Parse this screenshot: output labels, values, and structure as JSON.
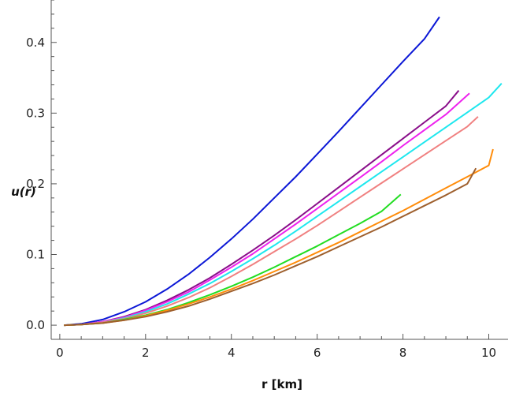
{
  "chart_data": {
    "type": "line",
    "title": "",
    "xlabel": "r [km]",
    "ylabel": "u(r)",
    "xlim": [
      -0.2,
      10.45
    ],
    "ylim": [
      -0.02,
      0.46
    ],
    "xticks": [
      0,
      2,
      4,
      6,
      8,
      10
    ],
    "yticks": [
      0.0,
      0.1,
      0.2,
      0.3,
      0.4
    ],
    "ytick_labels": [
      "0.0",
      "0.1",
      "0.2",
      "0.3",
      "0.4"
    ],
    "grid": false,
    "legend": "none",
    "series": [
      {
        "color": "#0b17d6",
        "x": [
          0.1,
          0.5,
          1,
          1.5,
          2,
          2.5,
          3,
          3.5,
          4,
          4.5,
          5,
          5.5,
          6,
          6.5,
          7,
          7.5,
          8,
          8.5,
          8.85
        ],
        "y": [
          0.0,
          0.002,
          0.008,
          0.019,
          0.033,
          0.051,
          0.072,
          0.096,
          0.122,
          0.15,
          0.18,
          0.21,
          0.242,
          0.274,
          0.307,
          0.34,
          0.373,
          0.405,
          0.436
        ]
      },
      {
        "color": "#8a0e8a",
        "x": [
          0.1,
          0.5,
          1,
          1.5,
          2,
          2.5,
          3,
          3.5,
          4,
          4.5,
          5,
          5.5,
          6,
          6.5,
          7,
          7.5,
          8,
          8.5,
          9,
          9.3
        ],
        "y": [
          0.0,
          0.001,
          0.005,
          0.012,
          0.022,
          0.035,
          0.05,
          0.067,
          0.086,
          0.106,
          0.127,
          0.149,
          0.172,
          0.195,
          0.218,
          0.241,
          0.264,
          0.287,
          0.31,
          0.332
        ]
      },
      {
        "color": "#ee22ee",
        "x": [
          0.1,
          0.5,
          1,
          1.5,
          2,
          2.5,
          3,
          3.5,
          4,
          4.5,
          5,
          5.5,
          6,
          6.5,
          7,
          7.5,
          8,
          8.5,
          9,
          9.55
        ],
        "y": [
          0.0,
          0.001,
          0.005,
          0.011,
          0.021,
          0.033,
          0.047,
          0.064,
          0.082,
          0.101,
          0.122,
          0.143,
          0.165,
          0.187,
          0.209,
          0.231,
          0.254,
          0.276,
          0.298,
          0.328
        ]
      },
      {
        "color": "#1ee7ee",
        "x": [
          0.1,
          0.5,
          1,
          1.5,
          2,
          2.5,
          3,
          3.5,
          4,
          4.5,
          5,
          5.5,
          6,
          6.5,
          7,
          7.5,
          8,
          8.5,
          9,
          9.5,
          10,
          10.3
        ],
        "y": [
          0.0,
          0.001,
          0.004,
          0.01,
          0.019,
          0.03,
          0.044,
          0.059,
          0.076,
          0.094,
          0.113,
          0.133,
          0.154,
          0.175,
          0.196,
          0.217,
          0.238,
          0.259,
          0.28,
          0.301,
          0.322,
          0.342
        ]
      },
      {
        "color": "#f08080",
        "x": [
          0.1,
          0.5,
          1,
          1.5,
          2,
          2.5,
          3,
          3.5,
          4,
          4.5,
          5,
          5.5,
          6,
          6.5,
          7,
          7.5,
          8,
          8.5,
          9,
          9.5,
          9.75
        ],
        "y": [
          0.0,
          0.001,
          0.004,
          0.009,
          0.017,
          0.027,
          0.039,
          0.053,
          0.069,
          0.086,
          0.104,
          0.122,
          0.141,
          0.161,
          0.181,
          0.201,
          0.221,
          0.241,
          0.261,
          0.281,
          0.295
        ]
      },
      {
        "color": "#22dd22",
        "x": [
          0.1,
          0.5,
          1,
          1.5,
          2,
          2.5,
          3,
          3.5,
          4,
          4.5,
          5,
          5.5,
          6,
          6.5,
          7,
          7.5,
          7.95
        ],
        "y": [
          0.0,
          0.001,
          0.003,
          0.008,
          0.014,
          0.022,
          0.032,
          0.043,
          0.055,
          0.068,
          0.082,
          0.097,
          0.112,
          0.128,
          0.144,
          0.161,
          0.185
        ]
      },
      {
        "color": "#ff8c0a",
        "x": [
          0.1,
          0.5,
          1,
          1.5,
          2,
          2.5,
          3,
          3.5,
          4,
          4.5,
          5,
          5.5,
          6,
          6.5,
          7,
          7.5,
          8,
          8.5,
          9,
          9.5,
          10,
          10.1
        ],
        "y": [
          0.0,
          0.001,
          0.003,
          0.007,
          0.013,
          0.021,
          0.03,
          0.04,
          0.051,
          0.063,
          0.076,
          0.089,
          0.103,
          0.117,
          0.132,
          0.147,
          0.162,
          0.178,
          0.194,
          0.21,
          0.226,
          0.249
        ]
      },
      {
        "color": "#9e5f2d",
        "x": [
          0.1,
          0.5,
          1,
          1.5,
          2,
          2.5,
          3,
          3.5,
          4,
          4.5,
          5,
          5.5,
          6,
          6.5,
          7,
          7.5,
          8,
          8.5,
          9,
          9.5,
          9.7
        ],
        "y": [
          0.0,
          0.001,
          0.003,
          0.007,
          0.012,
          0.019,
          0.027,
          0.037,
          0.048,
          0.059,
          0.071,
          0.084,
          0.097,
          0.111,
          0.125,
          0.139,
          0.154,
          0.169,
          0.184,
          0.2,
          0.222
        ]
      }
    ]
  }
}
